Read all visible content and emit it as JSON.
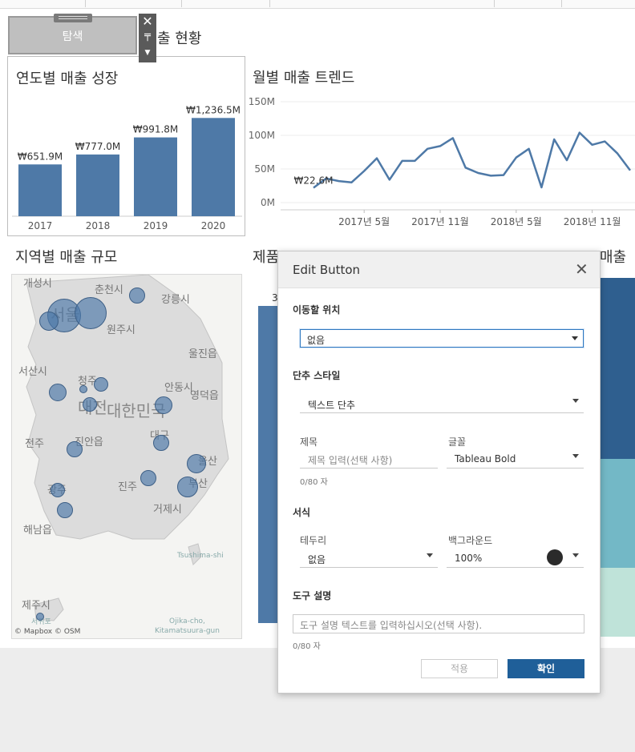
{
  "dashboard": {
    "title_fragment": "출 현황",
    "floating_button": {
      "label": "탐색"
    },
    "yearly": {
      "title": "연도별 매출 성장"
    },
    "monthly": {
      "title": "월별 매출 트렌드"
    },
    "region": {
      "title": "지역별 매출 규모",
      "map_labels": [
        "개성시",
        "춘천시",
        "강릉시",
        "서울",
        "원주시",
        "울진읍",
        "서산시",
        "청주",
        "안동시",
        "영덕읍",
        "대전",
        "대한민국",
        "대구",
        "전주",
        "진안읍",
        "울산",
        "광주",
        "진주",
        "부산",
        "거제시",
        "해남읍",
        "제주시",
        "서귀포",
        "Tsushima-shi",
        "Ojika-cho,",
        "Kitamatsuura-gun"
      ],
      "attribution": "© Mapbox © OSM"
    },
    "partial_title_center": "제품",
    "partial_title_right": "매출",
    "partial_bar_label": "3"
  },
  "chart_data": [
    {
      "type": "bar",
      "title": "연도별 매출 성장",
      "categories": [
        "2017",
        "2018",
        "2019",
        "2020"
      ],
      "values": [
        651.9,
        777.0,
        991.8,
        1236.5
      ],
      "data_labels": [
        "₩651.9M",
        "₩777.0M",
        "₩991.8M",
        "₩1,236.5M"
      ],
      "ylim": [
        0,
        1300
      ],
      "color": "#4e79a7"
    },
    {
      "type": "line",
      "title": "월별 매출 트렌드",
      "yticks": [
        "150M",
        "100M",
        "50M",
        "0M"
      ],
      "xticks": [
        "2017년 5월",
        "2017년 11월",
        "2018년 5월",
        "2018년 11월"
      ],
      "ylim": [
        0,
        150
      ],
      "values": [
        22,
        36,
        32,
        30,
        47,
        66,
        34,
        62,
        62,
        80,
        84,
        96,
        52,
        44,
        40,
        41,
        67,
        80,
        22.6,
        94,
        63,
        104,
        86,
        91,
        73,
        48
      ],
      "annotation": "₩22.6M",
      "color": "#4e79a7"
    }
  ],
  "dialog": {
    "title": "Edit Button",
    "destination": {
      "label": "이동할 위치",
      "value": "없음"
    },
    "button_style": {
      "label": "단추 스타일",
      "value": "텍스트 단추"
    },
    "title_field": {
      "label": "제목",
      "placeholder": "제목 입력(선택 사항)",
      "counter": "0/80 자"
    },
    "font": {
      "label": "글꼴",
      "value": "Tableau Bold"
    },
    "format": {
      "label": "서식"
    },
    "border": {
      "label": "테두리",
      "value": "없음"
    },
    "background": {
      "label": "백그라운드",
      "value": "100%",
      "color": "#2b2b2b"
    },
    "tooltip": {
      "label": "도구 설명",
      "placeholder": "도구 설명 텍스트를 입력하십시오(선택 사항).",
      "counter": "0/80 자"
    },
    "apply_label": "적용",
    "ok_label": "확인"
  }
}
